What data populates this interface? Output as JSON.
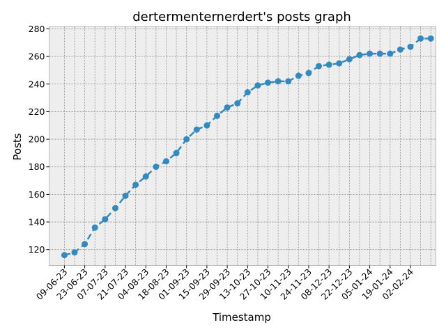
{
  "chart_data": {
    "type": "line",
    "title": "dertermenternerdert's posts graph",
    "xlabel": "Timestamp",
    "ylabel": "Posts",
    "grid": true,
    "legend": "none",
    "line_style": "dashed",
    "marker": "circle",
    "series_color": "#348abd",
    "background_color": "#eeeeee",
    "xlim": [
      -1.5,
      36.5
    ],
    "ylim": [
      108.5,
      281.5
    ],
    "yticks": [
      120,
      140,
      160,
      180,
      200,
      220,
      240,
      260,
      280
    ],
    "xtick_positions": [
      0,
      2,
      4,
      6,
      8,
      10,
      12,
      14,
      16,
      18,
      20,
      22,
      24,
      26,
      28,
      30,
      32,
      34
    ],
    "xtick_labels": [
      "09-06-23",
      "23-06-23",
      "07-07-23",
      "21-07-23",
      "04-08-23",
      "18-08-23",
      "01-09-23",
      "15-09-23",
      "29-09-23",
      "13-10-23",
      "27-10-23",
      "10-11-23",
      "24-11-23",
      "08-12-23",
      "22-12-23",
      "05-01-24",
      "19-01-24",
      "02-02-24"
    ],
    "series": [
      {
        "values": [
          116,
          118,
          124,
          136,
          142,
          150,
          159,
          167,
          173,
          180,
          184,
          190,
          200,
          207,
          210,
          217,
          223,
          226,
          234,
          239,
          241,
          242,
          242,
          246,
          248,
          253,
          254,
          255,
          258,
          261,
          262,
          262,
          262,
          265,
          267,
          273,
          273
        ]
      }
    ]
  }
}
